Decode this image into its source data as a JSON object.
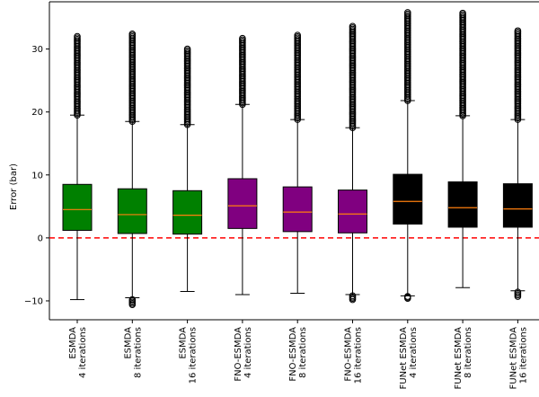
{
  "chart_data": {
    "type": "box",
    "title": "",
    "xlabel": "",
    "ylabel": "Error (bar)",
    "ylim": [
      -13,
      37.5
    ],
    "yticks": [
      -10,
      0,
      10,
      20,
      30
    ],
    "grid": false,
    "reference_line": {
      "y": 0,
      "color": "#ff0000",
      "style": "dashed"
    },
    "categories": [
      [
        "ESMDA",
        "4 iterations"
      ],
      [
        "ESMDA",
        "8 iterations"
      ],
      [
        "ESMDA",
        "16 iterations"
      ],
      [
        "FNO-ESMDA",
        "4 iterations"
      ],
      [
        "FNO-ESMDA",
        "8 iterations"
      ],
      [
        "FNO-ESMDA",
        "16 iterations"
      ],
      [
        "FUNet ESMDA",
        "4 iterations"
      ],
      [
        "FUNet ESMDA",
        "8 iterations"
      ],
      [
        "FUNet ESMDA",
        "16 iterations"
      ]
    ],
    "box_colors": [
      "#008000",
      "#008000",
      "#008000",
      "#800080",
      "#800080",
      "#800080",
      "#000000",
      "#000000",
      "#000000"
    ],
    "median_color": "#ff7f0e",
    "boxes": [
      {
        "whislo": -9.8,
        "q1": 1.2,
        "med": 4.5,
        "q3": 8.5,
        "whishi": 19.5,
        "fliers_hi": [
          19.5,
          32.0
        ],
        "fliers_lo": []
      },
      {
        "whislo": -9.5,
        "q1": 0.7,
        "med": 3.7,
        "q3": 7.8,
        "whishi": 18.5,
        "fliers_hi": [
          18.5,
          32.4
        ],
        "fliers_lo": [
          -9.8,
          -10.6
        ]
      },
      {
        "whislo": -8.5,
        "q1": 0.6,
        "med": 3.6,
        "q3": 7.5,
        "whishi": 18.0,
        "fliers_hi": [
          18.0,
          30.0
        ],
        "fliers_lo": []
      },
      {
        "whislo": -9.0,
        "q1": 1.5,
        "med": 5.1,
        "q3": 9.4,
        "whishi": 21.2,
        "fliers_hi": [
          21.2,
          31.7
        ],
        "fliers_lo": []
      },
      {
        "whislo": -8.8,
        "q1": 1.0,
        "med": 4.1,
        "q3": 8.1,
        "whishi": 18.8,
        "fliers_hi": [
          18.8,
          32.2
        ],
        "fliers_lo": []
      },
      {
        "whislo": -9.0,
        "q1": 0.8,
        "med": 3.8,
        "q3": 7.6,
        "whishi": 17.5,
        "fliers_hi": [
          17.5,
          33.6
        ],
        "fliers_lo": [
          -9.2,
          -9.8
        ]
      },
      {
        "whislo": -9.2,
        "q1": 2.2,
        "med": 5.8,
        "q3": 10.1,
        "whishi": 21.8,
        "fliers_hi": [
          21.8,
          35.8
        ],
        "fliers_lo": [
          -9.3,
          -9.6
        ]
      },
      {
        "whislo": -7.9,
        "q1": 1.7,
        "med": 4.8,
        "q3": 8.9,
        "whishi": 19.4,
        "fliers_hi": [
          19.4,
          35.7
        ],
        "fliers_lo": []
      },
      {
        "whislo": -8.4,
        "q1": 1.7,
        "med": 4.6,
        "q3": 8.6,
        "whishi": 18.8,
        "fliers_hi": [
          18.8,
          32.9
        ],
        "fliers_lo": [
          -8.6,
          -9.3
        ]
      }
    ]
  }
}
